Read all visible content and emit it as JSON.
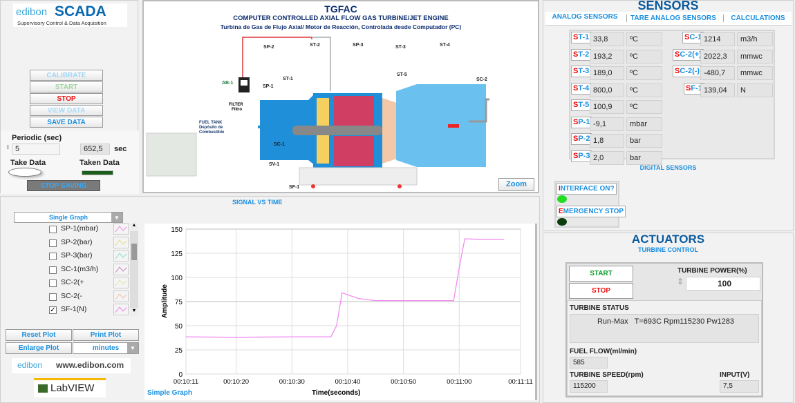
{
  "header": {
    "brand": "edibon",
    "app": "SCADA",
    "subtitle": "Supervisory Control & Data Acquisition"
  },
  "left_controls": {
    "buttons": [
      {
        "label": "CALIBRATE",
        "color": "#9fd4f5"
      },
      {
        "label": "START",
        "color": "#9fd49f"
      },
      {
        "label": "STOP",
        "color": "#ee1111"
      },
      {
        "label": "VIEW DATA",
        "color": "#a9d8f5"
      },
      {
        "label": "SAVE DATA",
        "color": "#1a8fe0"
      }
    ],
    "periodic_label": "Periodic (sec)",
    "periodic_value": "5",
    "elapsed_value": "652,5",
    "elapsed_unit": "sec",
    "take_data": "Take Data",
    "taken_data": "Taken Data",
    "stop_saving": "STOP SAVING"
  },
  "diagram": {
    "title": "TGFAC",
    "subtitle": "COMPUTER CONTROLLED AXIAL FLOW GAS TURBINE/JET ENGINE",
    "subtitle_es": "Turbina de Gas de Flujo Axial/ Motor de Reacción, Controlada desde Computador (PC)",
    "labels": [
      "SP-2",
      "ST-2",
      "SP-3",
      "ST-3",
      "ST-4",
      "ST-5",
      "ST-1",
      "SP-1",
      "AB-1",
      "SC-2",
      "SC-1",
      "SV-1",
      "SF-1"
    ],
    "filter": "FILTER",
    "filter_es": "Filtro",
    "fuel_tank": "FUEL TANK",
    "fuel_tank_es1": "Depósito de",
    "fuel_tank_es2": "Combustible",
    "zoom": "Zoom"
  },
  "sensors": {
    "title": "SENSORS",
    "tabs": [
      "ANALOG SENSORS",
      "TARE ANALOG SENSORS",
      "CALCULATIONS"
    ],
    "active_tab": 0,
    "left": [
      {
        "p": "S",
        "n": "T-1",
        "value": "33,8",
        "unit": "ºC"
      },
      {
        "p": "S",
        "n": "T-2",
        "value": "193,2",
        "unit": "ºC"
      },
      {
        "p": "S",
        "n": "T-3",
        "value": "189,0",
        "unit": "ºC"
      },
      {
        "p": "S",
        "n": "T-4",
        "value": "800,0",
        "unit": "ºC"
      },
      {
        "p": "S",
        "n": "T-5",
        "value": "100,9",
        "unit": "ºC"
      },
      {
        "p": "S",
        "n": "P-1",
        "value": "-9,1",
        "unit": "mbar"
      },
      {
        "p": "S",
        "n": "P-2",
        "value": "1,8",
        "unit": "bar"
      },
      {
        "p": "S",
        "n": "P-3",
        "value": "2,0",
        "unit": "bar"
      }
    ],
    "right": [
      {
        "p": "S",
        "n": "C-1",
        "value": "1214",
        "unit": "m3/h"
      },
      {
        "p": "S",
        "n": "C-2(+)",
        "value": "2022,3",
        "unit": "mmwc"
      },
      {
        "p": "S",
        "n": "C-2(-)",
        "value": "-480,7",
        "unit": "mmwc"
      },
      {
        "p": "S",
        "n": "F-1",
        "value": "139,04",
        "unit": "N"
      }
    ],
    "digital_title": "DIGITAL SENSORS",
    "digital": [
      {
        "p": "I",
        "n": "NTERFACE ON?",
        "state": "on",
        "color": "#22dd22"
      },
      {
        "p": "E",
        "n": "MERGENCY STOP",
        "state": "off",
        "color": "#0c3d0c"
      }
    ]
  },
  "actuators": {
    "title": "ACTUATORS",
    "subtitle": "TURBINE CONTROL",
    "start": "START",
    "stop": "STOP",
    "power_label": "TURBINE POWER(%)",
    "power_value": "100",
    "status_label": "TURBINE STATUS",
    "status_value": "Run-Max   T=693C Rpm115230 Pw1283",
    "fuel_label": "FUEL FLOW(ml/min)",
    "fuel_value": "585",
    "speed_label": "TURBINE SPEED(rpm)",
    "speed_value": "115200",
    "input_label": "INPUT(V)",
    "input_value": "7,5"
  },
  "graph_controls": {
    "mode": "Single Graph",
    "channels": [
      {
        "label": "SP-1(mbar)",
        "checked": false,
        "color": "#f08adf"
      },
      {
        "label": "SP-2(bar)",
        "checked": false,
        "color": "#e8d880"
      },
      {
        "label": "SP-3(bar)",
        "checked": false,
        "color": "#7fe0d0"
      },
      {
        "label": "SC-1(m3/h)",
        "checked": false,
        "color": "#d080c8"
      },
      {
        "label": "SC-2(+",
        "checked": false,
        "color": "#e0e8a0"
      },
      {
        "label": "SC-2(-",
        "checked": false,
        "color": "#f0c0a0"
      },
      {
        "label": "SF-1(N)",
        "checked": true,
        "color": "#f080f0"
      }
    ],
    "reset": "Reset Plot",
    "print": "Print Plot",
    "enlarge": "Enlarge Plot",
    "units": "minutes",
    "website": "www.edibon.com",
    "labview": "LabVIEW"
  },
  "chart_data": {
    "type": "line",
    "title": "SIGNAL VS TIME",
    "legend_name": "Simple Graph",
    "xlabel": "Time(seconds)",
    "ylabel": "Amplitude",
    "ylim": [
      0,
      150
    ],
    "yticks": [
      0,
      25,
      50,
      75,
      100,
      125,
      150
    ],
    "xticks": [
      "00:10:11",
      "00:10:20",
      "00:10:30",
      "00:10:40",
      "00:10:50",
      "00:11:00",
      "00:11:11"
    ],
    "xlim": [
      "00:10:11",
      "00:11:11"
    ],
    "grid": true,
    "color": "#f08cf0",
    "series": [
      {
        "x": [
          "00:10:11",
          "00:10:20",
          "00:10:30",
          "00:10:37",
          "00:10:38",
          "00:10:39",
          "00:10:40",
          "00:10:42",
          "00:10:45",
          "00:10:50",
          "00:10:59",
          "00:11:00",
          "00:11:01",
          "00:11:03",
          "00:11:08"
        ],
        "y": [
          38.5,
          38,
          38.5,
          38.5,
          50,
          84,
          82,
          78,
          76,
          76,
          76,
          110,
          140,
          139.5,
          139
        ]
      }
    ]
  }
}
